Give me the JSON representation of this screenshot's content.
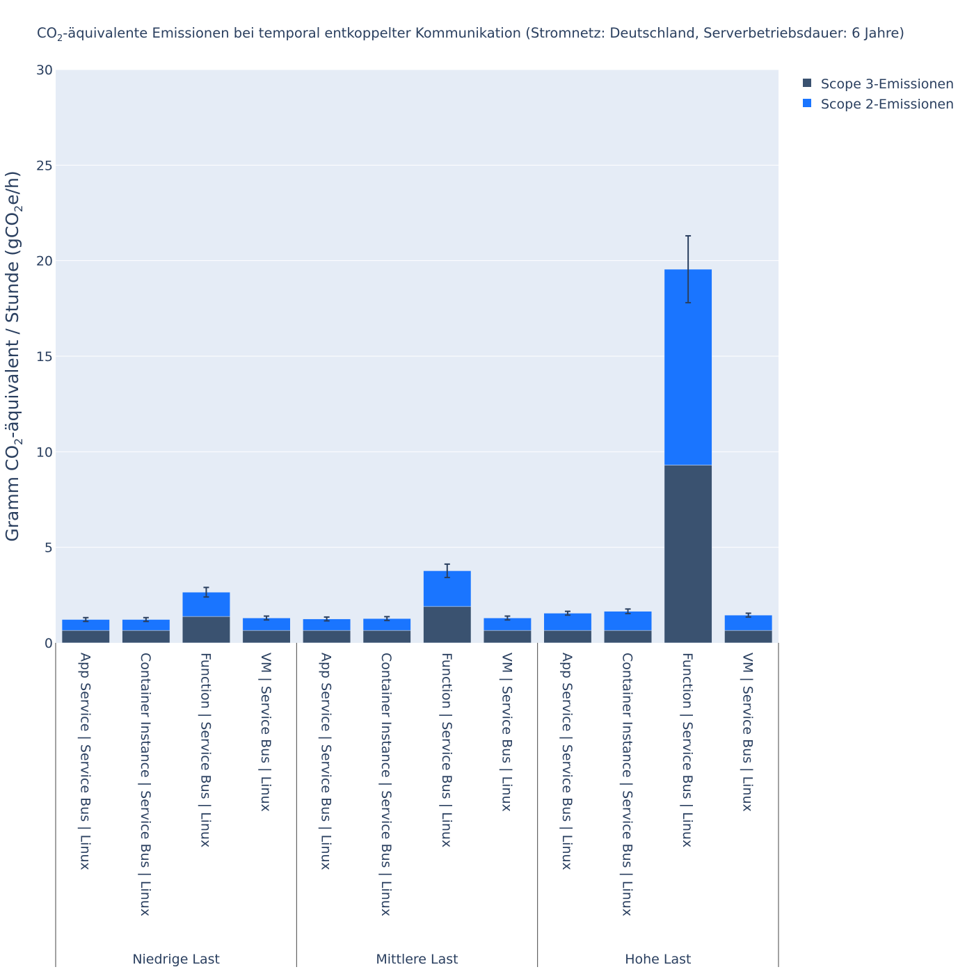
{
  "chart_data": {
    "type": "bar",
    "barmode": "stack",
    "title": {
      "prefix": "CO",
      "sub": "2",
      "suffix": "-äquivalente Emissionen bei temporal entkoppelter Kommunikation (Stromnetz: Deutschland, Serverbetriebsdauer: 6 Jahre)"
    },
    "ylabel": {
      "prefix": "Gramm CO",
      "sub1": "2",
      "middle": "-äquivalent / Stunde (gCO",
      "sub2": "2",
      "suffix": "e/h)"
    },
    "ylim": [
      0,
      30
    ],
    "yticks": [
      "0",
      "5",
      "10",
      "15",
      "20",
      "25",
      "30"
    ],
    "grid": true,
    "legend_position": "top-right",
    "groups": [
      "Niedrige Last",
      "Mittlere Last",
      "Hohe Last"
    ],
    "categories": [
      "App Service | Service Bus | Linux",
      "Container Instance | Service Bus | Linux",
      "Function | Service Bus | Linux",
      "VM | Service Bus | Linux",
      "App Service | Service Bus | Linux",
      "Container Instance | Service Bus | Linux",
      "Function | Service Bus | Linux",
      "VM | Service Bus | Linux",
      "App Service | Service Bus | Linux",
      "Container Instance | Service Bus | Linux",
      "Function | Service Bus | Linux",
      "VM | Service Bus | Linux"
    ],
    "series": [
      {
        "name": "Scope 3-Emissionen",
        "color": "#3a5270",
        "values": [
          0.65,
          0.65,
          1.38,
          0.65,
          0.65,
          0.65,
          1.9,
          0.65,
          0.65,
          0.65,
          9.3,
          0.65
        ]
      },
      {
        "name": "Scope 2-Emissionen",
        "color": "#1a75ff",
        "values": [
          0.57,
          0.57,
          1.27,
          0.65,
          0.6,
          0.62,
          1.87,
          0.65,
          0.9,
          1.0,
          10.25,
          0.8
        ]
      }
    ],
    "error_bars": [
      0.1,
      0.1,
      0.25,
      0.1,
      0.1,
      0.1,
      0.35,
      0.1,
      0.1,
      0.12,
      1.75,
      0.1
    ]
  }
}
